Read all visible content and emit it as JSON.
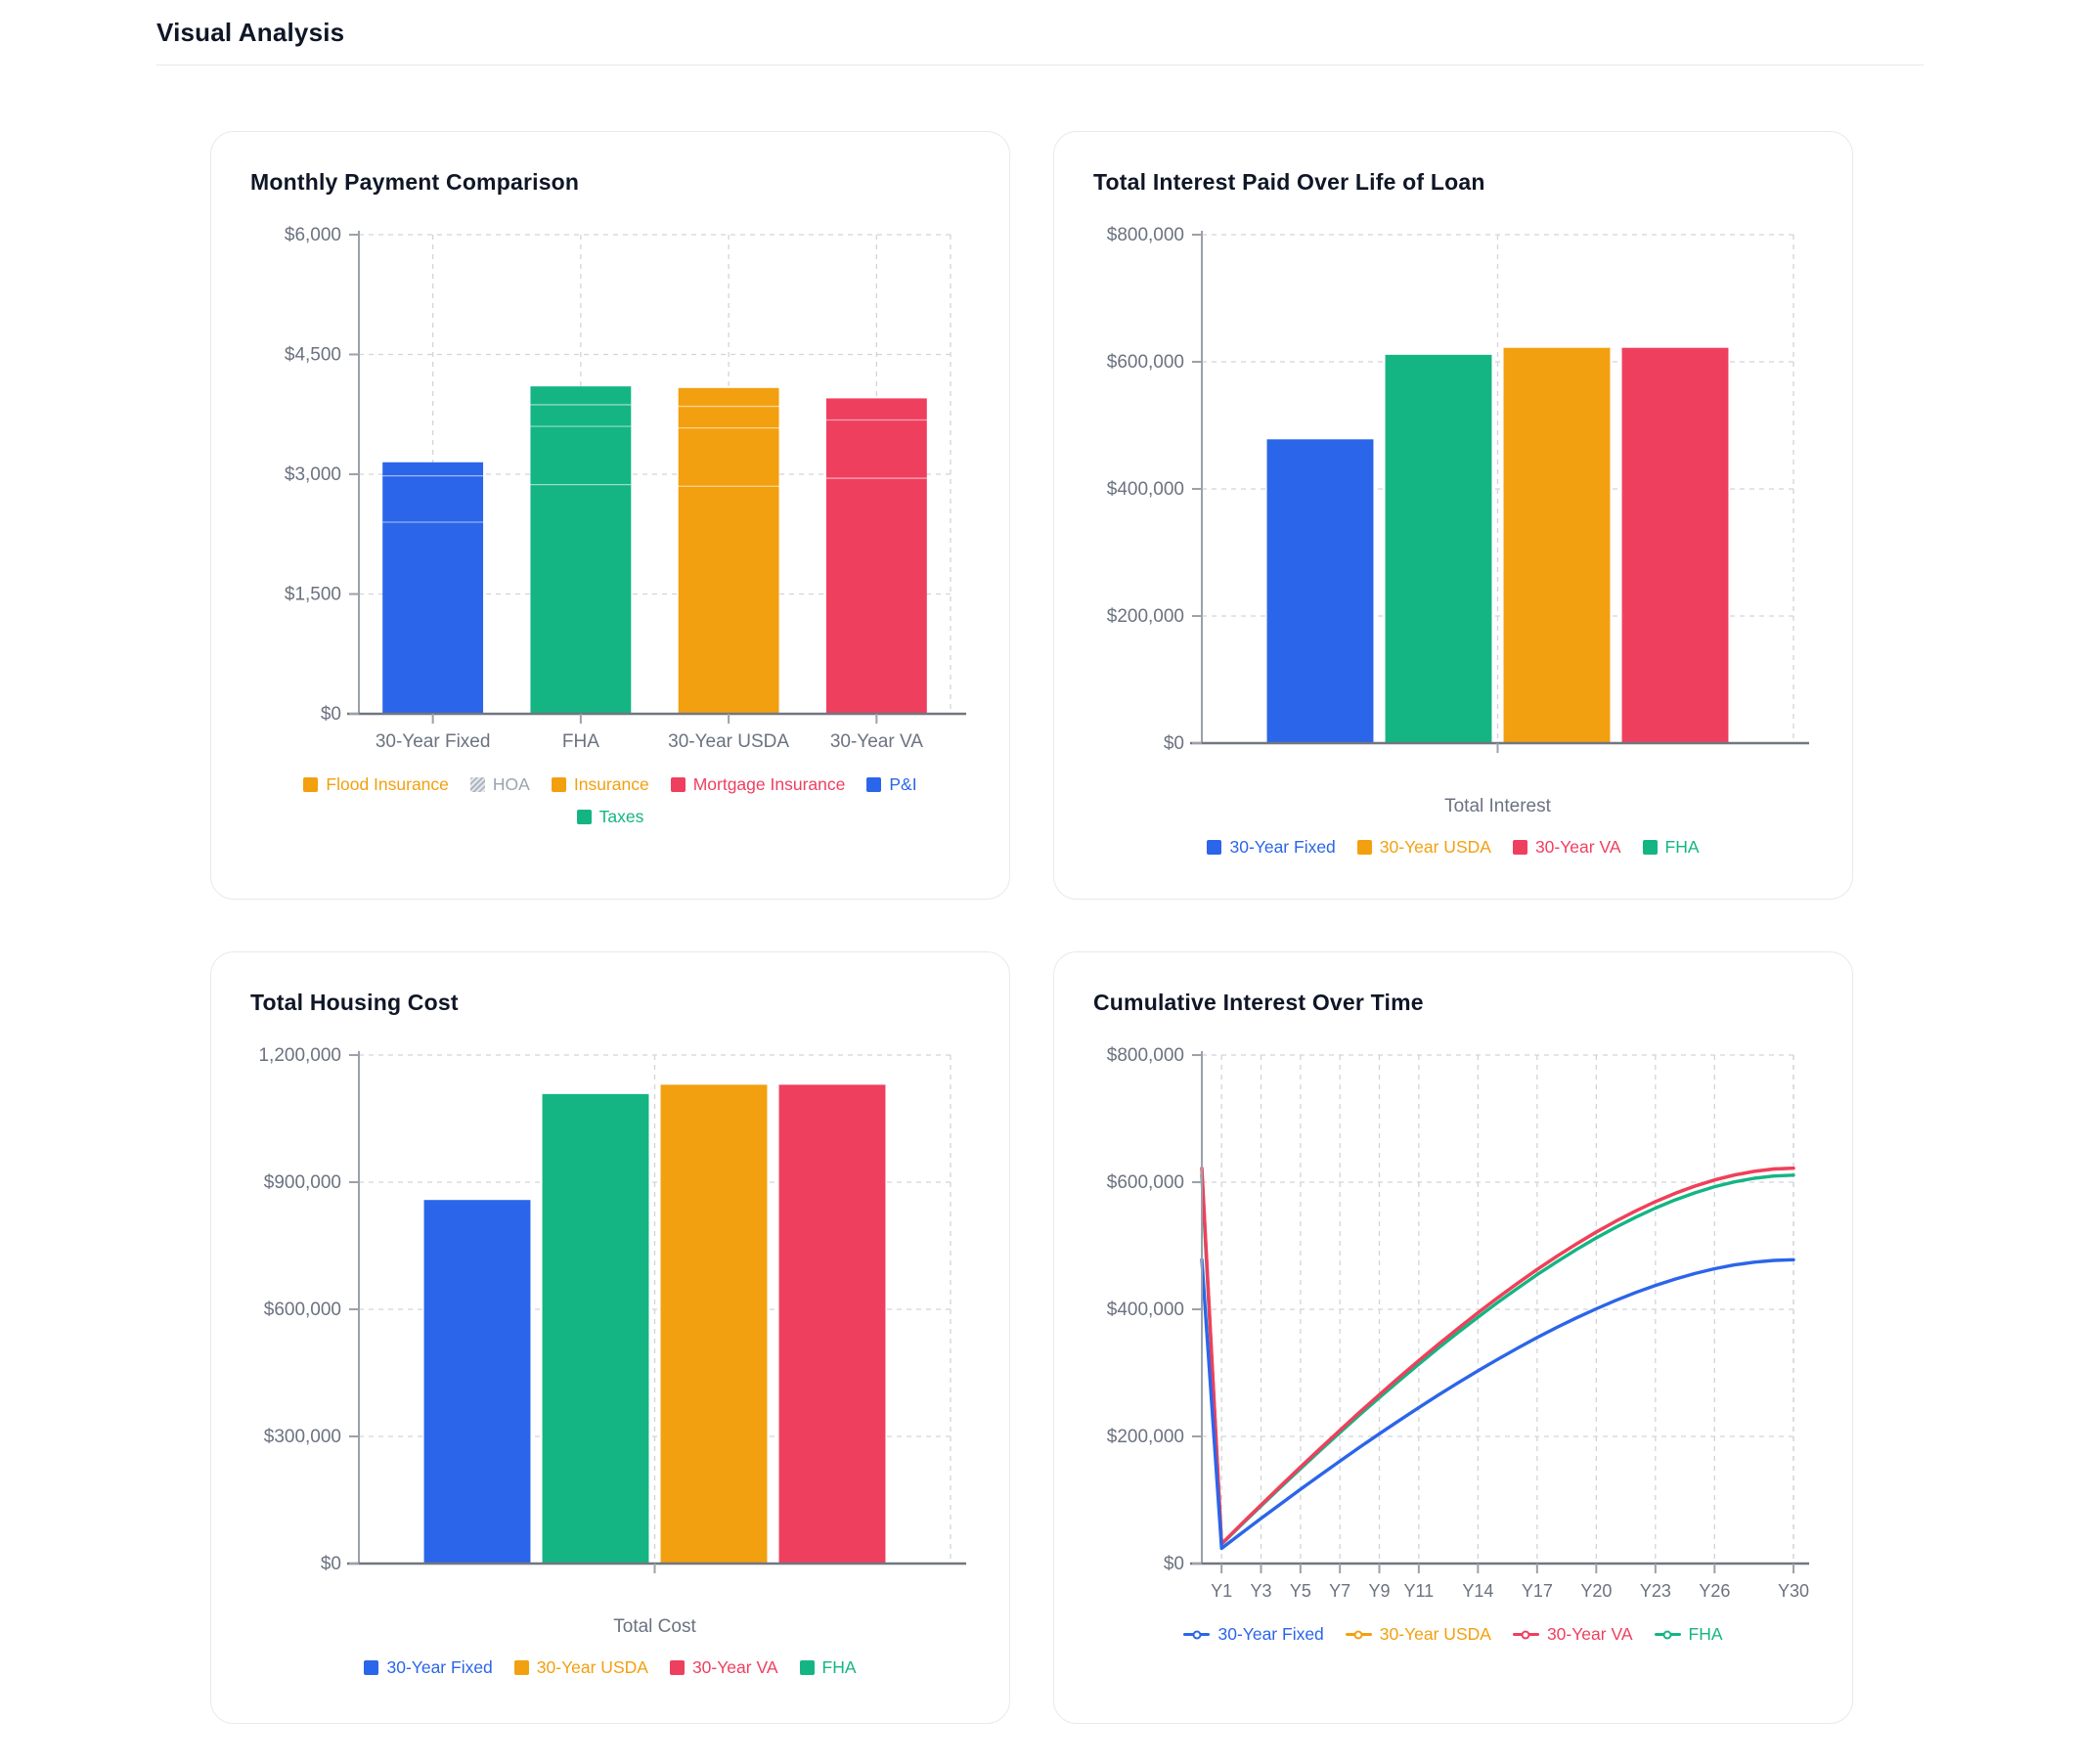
{
  "page": {
    "title": "Visual Analysis"
  },
  "colors": {
    "blue": "#2b65e9",
    "green": "#14b583",
    "orange": "#f2a00f",
    "red": "#ef3f5f",
    "hoa_gray": "#9ca3af",
    "axis_text": "#6b7280",
    "axis_line": "#9ba1aa",
    "baseline": "#717680",
    "gridline": "#d3d4d9",
    "heading": "#0f1626"
  },
  "chart_data": [
    {
      "type": "bar",
      "variant": "stacked",
      "title": "Monthly Payment Comparison",
      "ylim": [
        0,
        6000
      ],
      "y_ticks": [
        0,
        1500,
        3000,
        4500,
        6000
      ],
      "y_tick_labels": [
        "$0",
        "$1,500",
        "$3,000",
        "$4,500",
        "$6,000"
      ],
      "grid": true,
      "legend_position": "bottom",
      "categories": [
        "30-Year Fixed",
        "FHA",
        "30-Year USDA",
        "30-Year VA"
      ],
      "category_colors": [
        "#2b65e9",
        "#14b583",
        "#f2a00f",
        "#ef3f5f"
      ],
      "totals": [
        3150,
        4100,
        4080,
        3950
      ],
      "stacks": [
        {
          "category": "30-Year Fixed",
          "segments": [
            [
              "P&I",
              2400
            ],
            [
              "Taxes",
              580
            ],
            [
              "Insurance",
              170
            ]
          ]
        },
        {
          "category": "FHA",
          "segments": [
            [
              "P&I",
              2870
            ],
            [
              "Taxes",
              730
            ],
            [
              "Insurance",
              270
            ],
            [
              "Mortgage Insurance",
              230
            ]
          ]
        },
        {
          "category": "30-Year USDA",
          "segments": [
            [
              "P&I",
              2850
            ],
            [
              "Taxes",
              730
            ],
            [
              "Insurance",
              270
            ],
            [
              "Mortgage Insurance",
              230
            ]
          ]
        },
        {
          "category": "30-Year VA",
          "segments": [
            [
              "P&I",
              2950
            ],
            [
              "Taxes",
              730
            ],
            [
              "Insurance",
              270
            ]
          ]
        }
      ],
      "legend": [
        {
          "label": "Flood Insurance",
          "color": "#f2a00f",
          "marker": "square"
        },
        {
          "label": "HOA",
          "color": "#9ca3af",
          "marker": "hatch"
        },
        {
          "label": "Insurance",
          "color": "#f2a00f",
          "marker": "square"
        },
        {
          "label": "Mortgage Insurance",
          "color": "#ef3f5f",
          "marker": "square"
        },
        {
          "label": "P&I",
          "color": "#2b65e9",
          "marker": "square"
        },
        {
          "label": "Taxes",
          "color": "#14b583",
          "marker": "square"
        }
      ]
    },
    {
      "type": "bar",
      "variant": "grouped",
      "title": "Total Interest Paid Over Life of Loan",
      "ylim": [
        0,
        800000
      ],
      "y_ticks": [
        0,
        200000,
        400000,
        600000,
        800000
      ],
      "y_tick_labels": [
        "$0",
        "$200,000",
        "$400,000",
        "$600,000",
        "$800,000"
      ],
      "grid": true,
      "legend_position": "bottom",
      "x_category": "Total Interest",
      "xlabel": "Total Interest",
      "series": [
        {
          "name": "30-Year Fixed",
          "color": "#2b65e9",
          "value": 478000
        },
        {
          "name": "FHA",
          "color": "#14b583",
          "value": 611000
        },
        {
          "name": "30-Year USDA",
          "color": "#f2a00f",
          "value": 622000
        },
        {
          "name": "30-Year VA",
          "color": "#ef3f5f",
          "value": 622000
        }
      ],
      "legend": [
        {
          "label": "30-Year Fixed",
          "color": "#2b65e9",
          "marker": "square"
        },
        {
          "label": "30-Year USDA",
          "color": "#f2a00f",
          "marker": "square"
        },
        {
          "label": "30-Year VA",
          "color": "#ef3f5f",
          "marker": "square"
        },
        {
          "label": "FHA",
          "color": "#14b583",
          "marker": "square"
        }
      ]
    },
    {
      "type": "bar",
      "variant": "grouped",
      "title": "Total Housing Cost",
      "ylim": [
        0,
        1200000
      ],
      "y_ticks": [
        0,
        300000,
        600000,
        900000,
        1200000
      ],
      "y_tick_labels": [
        "$0",
        "$300,000",
        "$600,000",
        "$900,000",
        "1,200,000"
      ],
      "grid": true,
      "legend_position": "bottom",
      "x_category": "Total Cost",
      "xlabel": "Total Cost",
      "series": [
        {
          "name": "30-Year Fixed",
          "color": "#2b65e9",
          "value": 858000
        },
        {
          "name": "FHA",
          "color": "#14b583",
          "value": 1108000
        },
        {
          "name": "30-Year USDA",
          "color": "#f2a00f",
          "value": 1130000
        },
        {
          "name": "30-Year VA",
          "color": "#ef3f5f",
          "value": 1130000
        }
      ],
      "legend": [
        {
          "label": "30-Year Fixed",
          "color": "#2b65e9",
          "marker": "square"
        },
        {
          "label": "30-Year USDA",
          "color": "#f2a00f",
          "marker": "square"
        },
        {
          "label": "30-Year VA",
          "color": "#ef3f5f",
          "marker": "square"
        },
        {
          "label": "FHA",
          "color": "#14b583",
          "marker": "square"
        }
      ]
    },
    {
      "type": "line",
      "title": "Cumulative Interest Over Time",
      "ylim": [
        0,
        800000
      ],
      "y_ticks": [
        0,
        200000,
        400000,
        600000,
        800000
      ],
      "y_tick_labels": [
        "$0",
        "$200,000",
        "$400,000",
        "$600,000",
        "$800,000"
      ],
      "grid": true,
      "legend_position": "bottom",
      "n_points": 31,
      "x_tick_labels": [
        "Y1",
        "Y3",
        "Y5",
        "Y7",
        "Y9",
        "Y11",
        "Y14",
        "Y17",
        "Y20",
        "Y23",
        "Y26",
        "Y30"
      ],
      "x_tick_indices": [
        1,
        3,
        5,
        7,
        9,
        11,
        14,
        17,
        20,
        23,
        26,
        30
      ],
      "series": [
        {
          "name": "30-Year USDA",
          "color": "#f2a00f",
          "values": [
            622000,
            31100,
            61800,
            92200,
            122200,
            151800,
            181000,
            209700,
            238000,
            265600,
            292700,
            319200,
            345100,
            370200,
            394500,
            418100,
            440800,
            462600,
            483400,
            503000,
            521500,
            538800,
            554800,
            569400,
            582400,
            593800,
            603500,
            611300,
            617100,
            620700,
            622000
          ]
        },
        {
          "name": "FHA",
          "color": "#14b583",
          "values": [
            611000,
            30600,
            60700,
            90600,
            120100,
            149100,
            177800,
            206000,
            233800,
            260900,
            287500,
            313600,
            339000,
            363700,
            387600,
            410700,
            433000,
            454400,
            474800,
            494100,
            512300,
            529300,
            545000,
            559300,
            572100,
            583300,
            592900,
            600500,
            606200,
            609700,
            611000
          ]
        },
        {
          "name": "30-Year VA",
          "color": "#ef3f5f",
          "values": [
            622000,
            31100,
            61800,
            92200,
            122200,
            151800,
            181000,
            209700,
            238000,
            265600,
            292700,
            319200,
            345100,
            370200,
            394500,
            418100,
            440800,
            462600,
            483400,
            503000,
            521500,
            538800,
            554800,
            569400,
            582400,
            593800,
            603500,
            611300,
            617100,
            620700,
            622000
          ]
        },
        {
          "name": "30-Year Fixed",
          "color": "#2b65e9",
          "values": [
            478000,
            23900,
            47500,
            70900,
            93900,
            116700,
            139100,
            161200,
            182900,
            204100,
            225000,
            245300,
            265200,
            284500,
            303200,
            321300,
            338800,
            355500,
            371500,
            386600,
            400800,
            414100,
            426400,
            437600,
            447600,
            456300,
            463800,
            469800,
            474200,
            477000,
            478000
          ]
        }
      ],
      "legend": [
        {
          "label": "30-Year Fixed",
          "color": "#2b65e9",
          "marker": "line-dot"
        },
        {
          "label": "30-Year USDA",
          "color": "#f2a00f",
          "marker": "line-dot"
        },
        {
          "label": "30-Year VA",
          "color": "#ef3f5f",
          "marker": "line-dot"
        },
        {
          "label": "FHA",
          "color": "#14b583",
          "marker": "line-dot"
        }
      ]
    }
  ]
}
